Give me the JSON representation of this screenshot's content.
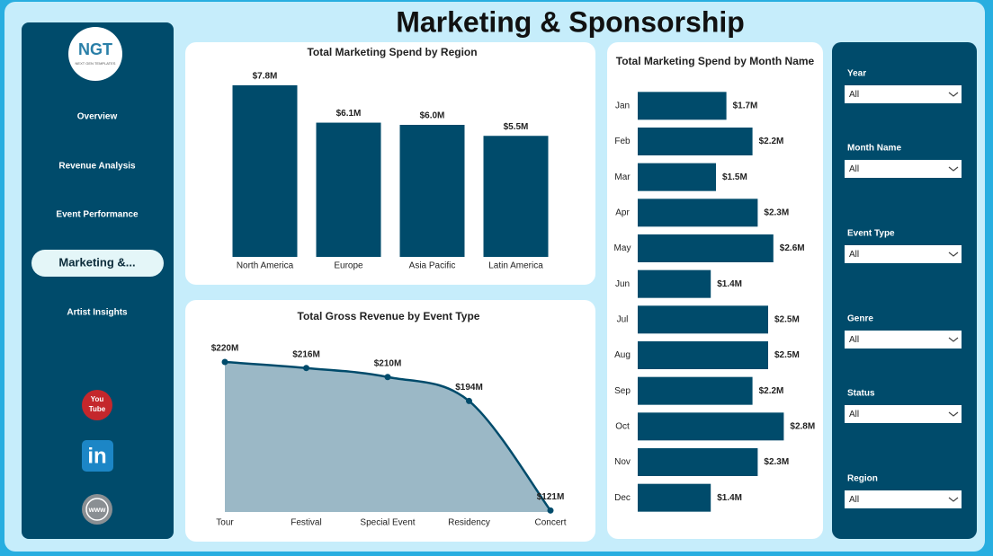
{
  "header": {
    "title": "Marketing & Sponsorship"
  },
  "nav": {
    "logo": "NGT",
    "logo_caption": "NEXT GEN TEMPLATES",
    "items": [
      "Overview",
      "Revenue Analysis",
      "Event Performance",
      "Marketing &...",
      "Artist Insights"
    ],
    "active": 3
  },
  "social": {
    "youtube": [
      "You",
      "Tube"
    ],
    "linkedin": "in",
    "web": "www"
  },
  "filters": [
    {
      "label": "Year",
      "value": "All"
    },
    {
      "label": "Month Name",
      "value": "All"
    },
    {
      "label": "Event Type",
      "value": "All"
    },
    {
      "label": "Genre",
      "value": "All"
    },
    {
      "label": "Status",
      "value": "All"
    },
    {
      "label": "Region",
      "value": "All"
    }
  ],
  "chart_data": [
    {
      "type": "bar",
      "title": "Total Marketing Spend by Region",
      "categories": [
        "North America",
        "Europe",
        "Asia Pacific",
        "Latin America"
      ],
      "values": [
        7.8,
        6.1,
        6.0,
        5.5
      ],
      "value_labels": [
        "$7.8M",
        "$6.1M",
        "$6.0M",
        "$5.5M"
      ],
      "color": "#004b6b",
      "ylim": [
        0,
        8
      ]
    },
    {
      "type": "hbar",
      "title": "Total Marketing Spend by Month Name",
      "categories": [
        "Jan",
        "Feb",
        "Mar",
        "Apr",
        "May",
        "Jun",
        "Jul",
        "Aug",
        "Sep",
        "Oct",
        "Nov",
        "Dec"
      ],
      "values": [
        1.7,
        2.2,
        1.5,
        2.3,
        2.6,
        1.4,
        2.5,
        2.5,
        2.2,
        2.8,
        2.3,
        1.4
      ],
      "value_labels": [
        "$1.7M",
        "$2.2M",
        "$1.5M",
        "$2.3M",
        "$2.6M",
        "$1.4M",
        "$2.5M",
        "$2.5M",
        "$2.2M",
        "$2.8M",
        "$2.3M",
        "$1.4M"
      ],
      "color": "#004b6b",
      "xlim": [
        0,
        3
      ]
    },
    {
      "type": "area",
      "title": "Total Gross Revenue by Event Type",
      "categories": [
        "Tour",
        "Festival",
        "Special Event",
        "Residency",
        "Concert"
      ],
      "values": [
        220,
        216,
        210,
        194,
        121
      ],
      "value_labels": [
        "$220M",
        "$216M",
        "$210M",
        "$194M",
        "$121M"
      ],
      "color": "#004b6b",
      "fill": "#9bb8c6",
      "ylim": [
        120,
        226
      ]
    }
  ]
}
